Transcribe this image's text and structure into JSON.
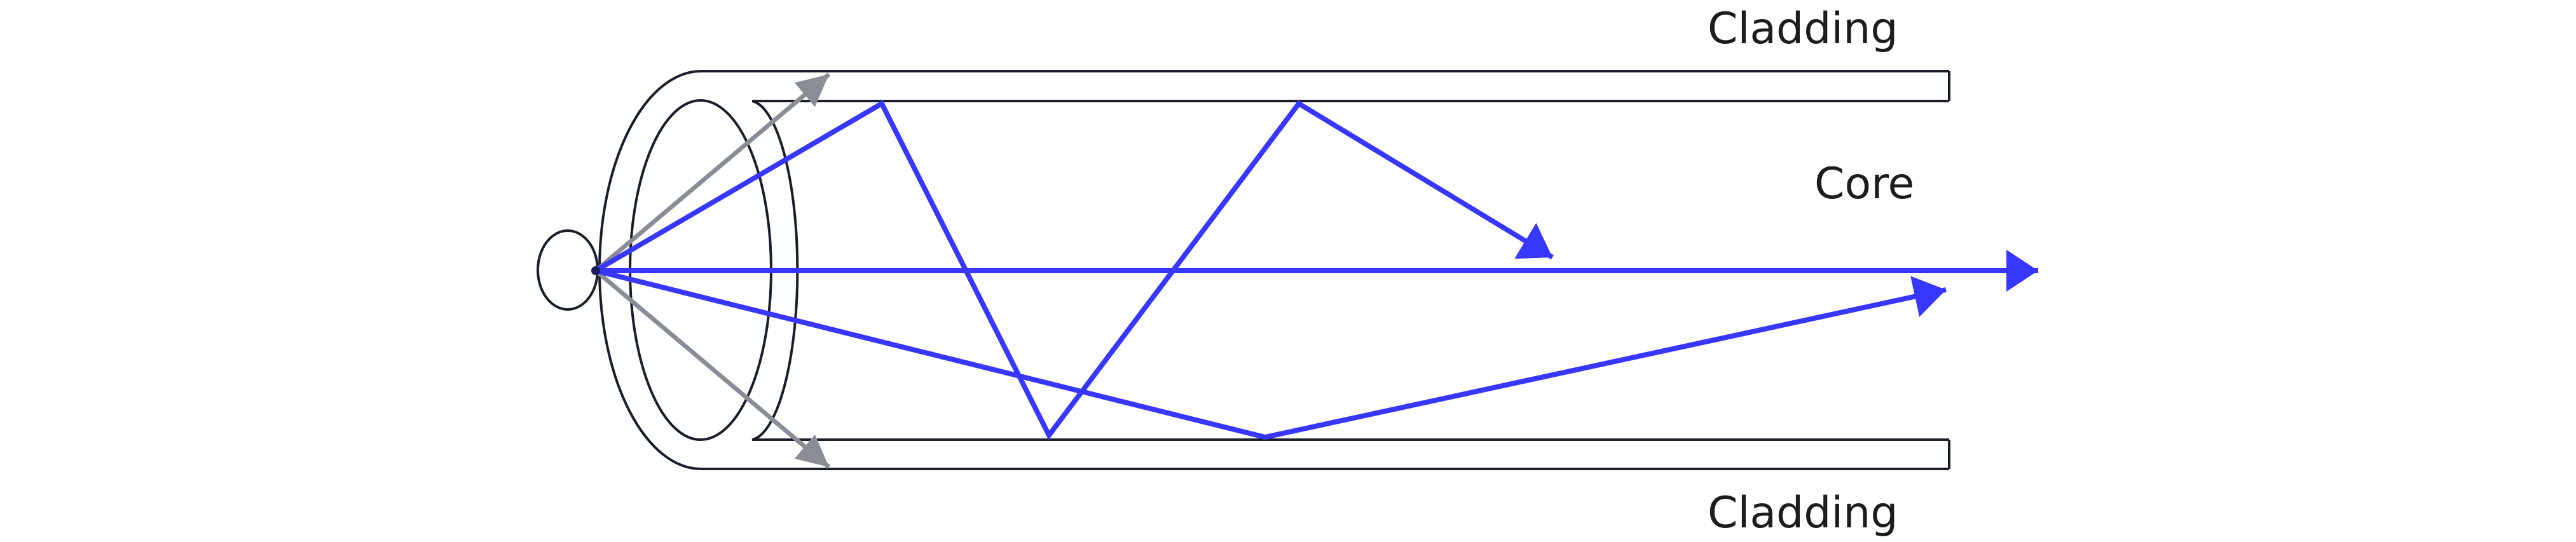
{
  "labels": {
    "cladding_top": "Cladding",
    "core": "Core",
    "cladding_bottom": "Cladding"
  },
  "colors": {
    "outline": "#1a1d2a",
    "guided_ray": "#3737ff",
    "escaping_ray": "#8a8d96"
  }
}
